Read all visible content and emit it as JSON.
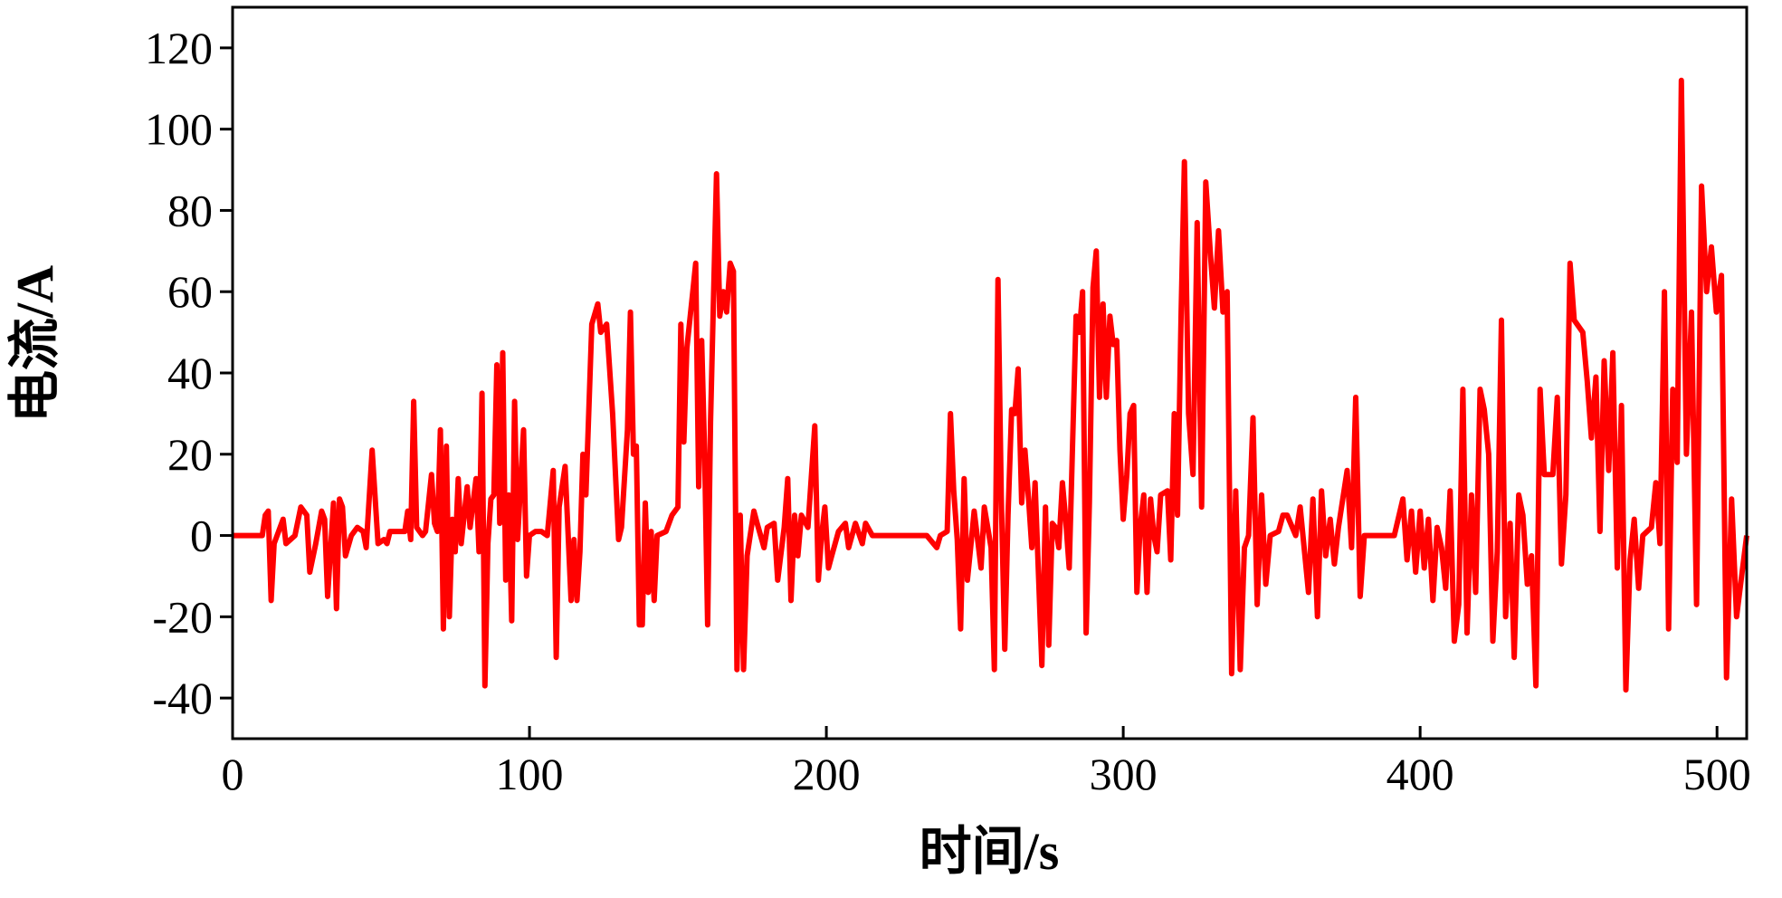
{
  "chart_data": {
    "type": "line",
    "xlabel": "时间/s",
    "ylabel": "电流/A",
    "xlim": [
      0,
      510
    ],
    "ylim": [
      -50,
      130
    ],
    "xticks": [
      0,
      100,
      200,
      300,
      400,
      500
    ],
    "yticks": [
      -40,
      -20,
      0,
      20,
      40,
      60,
      80,
      100,
      120
    ],
    "x": [
      0,
      10,
      11,
      12,
      13,
      14,
      17,
      18,
      21,
      23,
      25,
      26,
      28,
      30,
      31,
      32,
      34,
      35,
      36,
      37,
      38,
      40,
      42,
      44,
      45,
      47,
      49,
      51,
      52,
      53,
      58,
      59,
      60,
      61,
      62,
      64,
      65,
      67,
      68,
      69,
      70,
      71,
      72,
      73,
      74,
      75,
      76,
      77,
      79,
      80,
      82,
      83,
      84,
      85,
      86,
      87,
      88,
      89,
      90,
      91,
      92,
      93,
      94,
      95,
      96,
      98,
      99,
      100,
      102,
      104,
      106,
      108,
      109,
      110,
      112,
      114,
      115,
      116,
      117,
      118,
      119,
      121,
      123,
      124,
      126,
      128,
      130,
      131,
      133,
      134,
      135,
      136,
      137,
      138,
      139,
      140,
      141,
      142,
      143,
      146,
      148,
      150,
      151,
      152,
      153,
      155,
      156,
      157,
      158,
      159,
      160,
      161,
      163,
      164.1,
      165.3,
      166.4,
      167.6,
      168.7,
      169.9,
      171,
      172.1,
      173.3,
      175.6,
      176.7,
      179,
      180.1,
      182.4,
      183.6,
      185.8,
      187,
      188.1,
      189.3,
      190.4,
      191.6,
      193.8,
      196.1,
      197.3,
      198.4,
      199.5,
      200.7,
      201.8,
      204.1,
      206.4,
      207.5,
      209.8,
      212.1,
      213.2,
      215.5,
      222.4,
      233.8,
      237.2,
      238.4,
      240.7,
      241.8,
      242.9,
      244.1,
      245.2,
      246.4,
      247.5,
      248.6,
      249.8,
      252.1,
      253.2,
      255.5,
      256.6,
      257.8,
      258.9,
      260.1,
      261.2,
      262.4,
      263.5,
      264.6,
      265.8,
      266.9,
      268.1,
      269.2,
      270.3,
      272.6,
      273.8,
      274.9,
      276.1,
      277.2,
      278.3,
      279.5,
      280.6,
      281.8,
      284.1,
      285.2,
      286.3,
      287.5,
      288.6,
      289.8,
      290.9,
      292,
      293.2,
      294.3,
      295.5,
      296.6,
      297.8,
      298.9,
      300,
      301.2,
      302.3,
      303.5,
      304.6,
      305.7,
      306.9,
      308,
      309.2,
      310.3,
      311.4,
      312.6,
      314.9,
      316,
      317.2,
      318.3,
      319.5,
      320.6,
      322,
      323.5,
      324.9,
      326.4,
      327.8,
      329.3,
      330.7,
      332.1,
      333.6,
      335,
      336.5,
      337.9,
      339.4,
      340.8,
      342.2,
      343.7,
      345.1,
      346.6,
      348,
      349.5,
      352.3,
      353.8,
      355.2,
      358.1,
      359.6,
      362.4,
      363.9,
      365.4,
      366.8,
      368.2,
      369.7,
      371.1,
      372.5,
      375.4,
      376.9,
      378.3,
      379.8,
      381.2,
      384.1,
      391.3,
      394.2,
      395.6,
      397.1,
      398.5,
      400,
      401.4,
      402.8,
      404.3,
      405.7,
      407.2,
      408.6,
      410.1,
      411.5,
      413,
      414.4,
      415.8,
      417.3,
      418.7,
      420.2,
      421.6,
      423.1,
      424.5,
      426,
      427.4,
      428.8,
      430.3,
      431.7,
      433.2,
      434.6,
      436.1,
      437.5,
      439,
      440.4,
      441.8,
      444.7,
      446.2,
      447.6,
      449.1,
      450.5,
      451.9,
      454.8,
      456.3,
      457.7,
      459.2,
      460.6,
      462,
      463.5,
      464.9,
      466.4,
      467.8,
      469.3,
      470.7,
      472.1,
      473.6,
      475,
      477.9,
      479.4,
      480.8,
      482.3,
      483.7,
      485.1,
      486.6,
      488,
      489.7,
      491.4,
      493.1,
      494.8,
      496.5,
      498.1,
      499.8,
      501.5,
      503.2,
      504.9,
      506.6,
      508.3,
      510
    ],
    "series": [
      {
        "color": "#ff0000",
        "values": [
          0,
          0,
          5,
          6,
          -16,
          -2,
          4,
          -2,
          0,
          7,
          5,
          -9,
          -2,
          6,
          4,
          -15,
          8,
          -18,
          9,
          7,
          -5,
          0,
          2,
          1,
          -3,
          21,
          -2,
          -1,
          -2,
          1,
          1,
          6,
          -1,
          33,
          2,
          0,
          1,
          15,
          3,
          1,
          26,
          -23,
          22,
          -20,
          4,
          -4,
          14,
          -2,
          12,
          2,
          14,
          -4,
          35,
          -37,
          -2,
          9,
          10,
          42,
          3,
          45,
          -11,
          10,
          -21,
          33,
          -1,
          26,
          -10,
          0,
          1,
          1,
          0,
          16,
          -30,
          7,
          17,
          -16,
          -1,
          -16,
          -4,
          20,
          10,
          52,
          57,
          50,
          52,
          30,
          -1,
          2,
          26,
          55,
          20,
          22,
          -22,
          -22,
          8,
          -14,
          1,
          -16,
          0,
          1,
          5,
          7,
          52,
          23,
          46,
          60,
          67,
          12,
          48,
          20,
          -22,
          28,
          89,
          54,
          60,
          55,
          67,
          65,
          -33,
          5,
          -33,
          -5,
          6,
          3,
          -3,
          2,
          3,
          -11,
          2,
          14,
          -16,
          5,
          -5,
          5,
          2,
          27,
          -11,
          0,
          7,
          -8,
          -5,
          1,
          3,
          -3,
          3,
          -2,
          3,
          0,
          0,
          0,
          -3,
          0,
          1,
          30,
          11,
          -1,
          -23,
          14,
          -11,
          -3,
          6,
          -8,
          7,
          -3,
          -33,
          63,
          10,
          -28,
          5,
          31,
          30,
          41,
          8,
          21,
          9,
          -3,
          13,
          -32,
          7,
          -27,
          3,
          2,
          -3,
          13,
          4,
          -8,
          54,
          50,
          60,
          -24,
          8,
          61,
          70,
          34,
          57,
          34,
          54,
          47,
          48,
          21,
          4,
          15,
          30,
          32,
          -14,
          2,
          10,
          -14,
          9,
          0,
          -4,
          10,
          11,
          -6,
          30,
          5,
          55,
          92,
          30,
          15,
          77,
          7,
          87,
          70,
          56,
          75,
          55,
          60,
          -34,
          11,
          -33,
          -3,
          0,
          29,
          -17,
          10,
          -12,
          0,
          1,
          5,
          5,
          0,
          7,
          -14,
          9,
          -20,
          11,
          -5,
          4,
          -7,
          2,
          16,
          -3,
          34,
          -15,
          0,
          0,
          0,
          9,
          -6,
          6,
          -9,
          6,
          -8,
          4,
          -16,
          2,
          -3,
          -13,
          11,
          -26,
          -17,
          36,
          -24,
          10,
          -14,
          36,
          31,
          20,
          -26,
          -4,
          53,
          -20,
          3,
          -30,
          10,
          5,
          -12,
          -5,
          -37,
          36,
          15,
          15,
          34,
          -7,
          10,
          67,
          53,
          50,
          38,
          24,
          39,
          1,
          43,
          16,
          45,
          -8,
          32,
          -38,
          -6,
          4,
          -13,
          0,
          2,
          13,
          -2,
          60,
          -23,
          36,
          18,
          112,
          20,
          55,
          -17,
          86,
          60,
          71,
          55,
          64,
          -35,
          9,
          -20,
          -10,
          0
        ]
      }
    ]
  }
}
